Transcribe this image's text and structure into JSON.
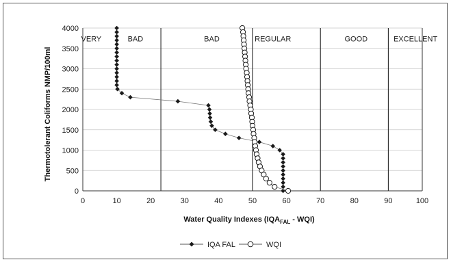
{
  "chart_data": {
    "type": "scatter",
    "title": "",
    "xlabel": "Water Quality Indexes (IQA",
    "xlabel_sub": "FAL",
    "xlabel_end": " - WQI)",
    "ylabel": "Thermotolerant Coliforms NMP/100ml",
    "xlim": [
      0,
      100
    ],
    "ylim": [
      0,
      4000
    ],
    "x_ticks": [
      "0",
      "10",
      "20",
      "30",
      "40",
      "50",
      "60",
      "70",
      "80",
      "90",
      "100"
    ],
    "y_ticks": [
      "0",
      "500",
      "1000",
      "1500",
      "2000",
      "2500",
      "3000",
      "3500",
      "4000"
    ],
    "grid": "horizontal",
    "legend_position": "bottom",
    "bands": [
      {
        "label": "VERY",
        "x": 2.5,
        "y": 3670
      },
      {
        "label": "BAD",
        "x": 15.5,
        "y": 3670
      },
      {
        "label": "BAD",
        "x": 38,
        "y": 3670
      },
      {
        "label": "REGULAR",
        "x": 56,
        "y": 3670
      },
      {
        "label": "GOOD",
        "x": 80.5,
        "y": 3670
      },
      {
        "label": "EXCELLENT",
        "x": 98,
        "y": 3670
      }
    ],
    "band_dividers": [
      23,
      50,
      70,
      90
    ],
    "series": [
      {
        "name": "IQA FAL",
        "marker": "diamond",
        "color": "#1a1a1a",
        "points": [
          [
            10,
            4000
          ],
          [
            10,
            3900
          ],
          [
            10,
            3800
          ],
          [
            10,
            3700
          ],
          [
            10,
            3600
          ],
          [
            10,
            3500
          ],
          [
            10,
            3400
          ],
          [
            10,
            3300
          ],
          [
            10,
            3200
          ],
          [
            10,
            3100
          ],
          [
            10,
            3000
          ],
          [
            10,
            2900
          ],
          [
            10,
            2800
          ],
          [
            10,
            2700
          ],
          [
            10,
            2600
          ],
          [
            10.2,
            2500
          ],
          [
            11.5,
            2400
          ],
          [
            14,
            2300
          ],
          [
            28,
            2200
          ],
          [
            37,
            2100
          ],
          [
            37.3,
            2000
          ],
          [
            37.4,
            1900
          ],
          [
            37.5,
            1800
          ],
          [
            37.7,
            1700
          ],
          [
            38,
            1600
          ],
          [
            39,
            1500
          ],
          [
            42,
            1400
          ],
          [
            46,
            1300
          ],
          [
            52,
            1200
          ],
          [
            56,
            1100
          ],
          [
            58,
            1000
          ],
          [
            59,
            900
          ],
          [
            59,
            800
          ],
          [
            59,
            700
          ],
          [
            59,
            600
          ],
          [
            59,
            500
          ],
          [
            59,
            400
          ],
          [
            59,
            300
          ],
          [
            59,
            200
          ],
          [
            59,
            100
          ],
          [
            59,
            0
          ]
        ]
      },
      {
        "name": "WQI",
        "marker": "circle",
        "color": "#1a1a1a",
        "points": [
          [
            47,
            4000
          ],
          [
            47.2,
            3900
          ],
          [
            47.3,
            3800
          ],
          [
            47.4,
            3700
          ],
          [
            47.5,
            3600
          ],
          [
            47.6,
            3500
          ],
          [
            47.7,
            3400
          ],
          [
            47.8,
            3300
          ],
          [
            47.9,
            3200
          ],
          [
            48.0,
            3100
          ],
          [
            48.1,
            3000
          ],
          [
            48.3,
            2900
          ],
          [
            48.4,
            2800
          ],
          [
            48.5,
            2700
          ],
          [
            48.6,
            2600
          ],
          [
            48.7,
            2500
          ],
          [
            48.8,
            2400
          ],
          [
            49.0,
            2300
          ],
          [
            49.1,
            2200
          ],
          [
            49.3,
            2100
          ],
          [
            49.5,
            2000
          ],
          [
            49.6,
            1900
          ],
          [
            49.8,
            1800
          ],
          [
            49.9,
            1700
          ],
          [
            50.0,
            1600
          ],
          [
            50.2,
            1500
          ],
          [
            50.3,
            1400
          ],
          [
            50.5,
            1300
          ],
          [
            50.6,
            1200
          ],
          [
            50.8,
            1100
          ],
          [
            51.0,
            1000
          ],
          [
            51.2,
            900
          ],
          [
            51.5,
            800
          ],
          [
            51.8,
            700
          ],
          [
            52.2,
            600
          ],
          [
            52.7,
            500
          ],
          [
            53.3,
            400
          ],
          [
            54.0,
            300
          ],
          [
            55.0,
            200
          ],
          [
            56.5,
            100
          ],
          [
            60.5,
            0
          ]
        ]
      }
    ]
  }
}
